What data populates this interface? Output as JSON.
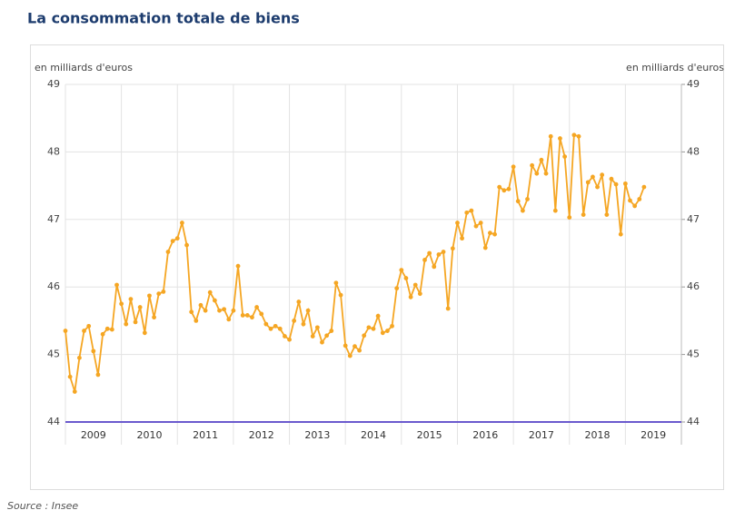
{
  "chart_data": {
    "type": "line",
    "title": "La consommation totale de biens",
    "y_label": "en milliards d'euros",
    "y2_label": "en milliards d'euros",
    "source": "Source : Insee",
    "xlim": [
      2009,
      2020
    ],
    "xticks": [
      2009,
      2010,
      2011,
      2012,
      2013,
      2014,
      2015,
      2016,
      2017,
      2018,
      2019
    ],
    "ylim": [
      44,
      49
    ],
    "yticks": [
      44,
      45,
      46,
      47,
      48,
      49
    ],
    "y2lim": [
      44,
      49
    ],
    "y2ticks": [
      44,
      45,
      46,
      47,
      48,
      49
    ],
    "grid": true,
    "x": [
      2009,
      2009.083,
      2009.167,
      2009.25,
      2009.333,
      2009.417,
      2009.5,
      2009.583,
      2009.667,
      2009.75,
      2009.833,
      2009.917,
      2010,
      2010.083,
      2010.167,
      2010.25,
      2010.333,
      2010.417,
      2010.5,
      2010.583,
      2010.667,
      2010.75,
      2010.833,
      2010.917,
      2011,
      2011.083,
      2011.167,
      2011.25,
      2011.333,
      2011.417,
      2011.5,
      2011.583,
      2011.667,
      2011.75,
      2011.833,
      2011.917,
      2012,
      2012.083,
      2012.167,
      2012.25,
      2012.333,
      2012.417,
      2012.5,
      2012.583,
      2012.667,
      2012.75,
      2012.833,
      2012.917,
      2013,
      2013.083,
      2013.167,
      2013.25,
      2013.333,
      2013.417,
      2013.5,
      2013.583,
      2013.667,
      2013.75,
      2013.833,
      2013.917,
      2014,
      2014.083,
      2014.167,
      2014.25,
      2014.333,
      2014.417,
      2014.5,
      2014.583,
      2014.667,
      2014.75,
      2014.833,
      2014.917,
      2015,
      2015.083,
      2015.167,
      2015.25,
      2015.333,
      2015.417,
      2015.5,
      2015.583,
      2015.667,
      2015.75,
      2015.833,
      2015.917,
      2016,
      2016.083,
      2016.167,
      2016.25,
      2016.333,
      2016.417,
      2016.5,
      2016.583,
      2016.667,
      2016.75,
      2016.833,
      2016.917,
      2017,
      2017.083,
      2017.167,
      2017.25,
      2017.333,
      2017.417,
      2017.5,
      2017.583,
      2017.667,
      2017.75,
      2017.833,
      2017.917,
      2018,
      2018.083,
      2018.167,
      2018.25,
      2018.333,
      2018.417,
      2018.5,
      2018.583,
      2018.667,
      2018.75,
      2018.833,
      2018.917,
      2019,
      2019.083,
      2019.167,
      2019.25,
      2019.333
    ],
    "series": [
      {
        "name": "Consommation totale de biens",
        "color": "#f5a623",
        "values": [
          45.35,
          44.67,
          44.45,
          44.95,
          45.35,
          45.42,
          45.05,
          44.7,
          45.3,
          45.38,
          45.37,
          46.03,
          45.75,
          45.45,
          45.82,
          45.48,
          45.7,
          45.32,
          45.87,
          45.55,
          45.9,
          45.93,
          46.52,
          46.68,
          46.72,
          46.95,
          46.62,
          45.63,
          45.5,
          45.73,
          45.65,
          45.92,
          45.8,
          45.65,
          45.67,
          45.52,
          45.65,
          46.31,
          45.58,
          45.58,
          45.55,
          45.7,
          45.6,
          45.45,
          45.38,
          45.42,
          45.38,
          45.27,
          45.22,
          45.5,
          45.78,
          45.45,
          45.65,
          45.27,
          45.4,
          45.18,
          45.28,
          45.35,
          46.06,
          45.88,
          45.13,
          44.98,
          45.12,
          45.06,
          45.28,
          45.4,
          45.38,
          45.57,
          45.32,
          45.35,
          45.42,
          45.98,
          46.25,
          46.13,
          45.85,
          46.03,
          45.9,
          46.4,
          46.5,
          46.3,
          46.48,
          46.52,
          45.68,
          46.57,
          46.95,
          46.72,
          47.1,
          47.13,
          46.9,
          46.95,
          46.58,
          46.8,
          46.78,
          47.48,
          47.43,
          47.45,
          47.78,
          47.27,
          47.13,
          47.3,
          47.8,
          47.68,
          47.88,
          47.68,
          48.23,
          47.13,
          48.2,
          47.93,
          47.03,
          48.25,
          48.23,
          47.07,
          47.55,
          47.63,
          47.48,
          47.66,
          47.07,
          47.6,
          47.52,
          46.78,
          47.53,
          47.28,
          47.2,
          47.3,
          47.48
        ]
      }
    ]
  }
}
